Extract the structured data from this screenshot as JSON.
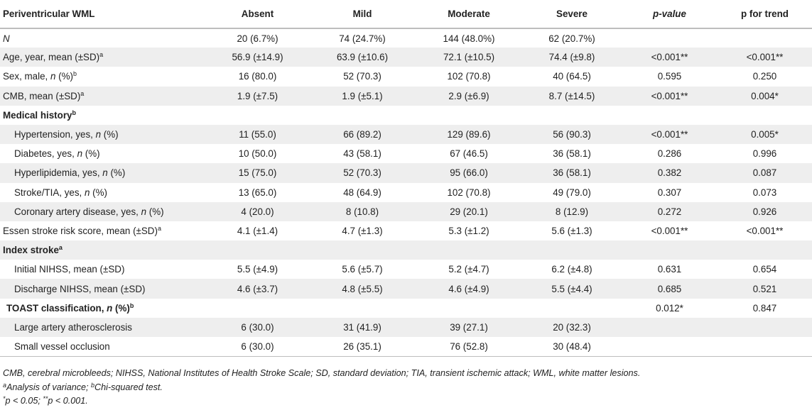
{
  "table": {
    "headers": [
      "Periventricular WML",
      "Absent",
      "Mild",
      "Moderate",
      "Severe",
      "p-value",
      "p for trend"
    ],
    "rows": [
      {
        "label_pre": "",
        "label_it": "N",
        "label_post": "",
        "sup": "",
        "type": "data",
        "shaded": false,
        "cells": [
          "20 (6.7%)",
          "74 (24.7%)",
          "144 (48.0%)",
          "62 (20.7%)",
          "",
          ""
        ]
      },
      {
        "label_pre": "Age, year, mean (±SD)",
        "label_it": "",
        "label_post": "",
        "sup": "a",
        "type": "data",
        "shaded": true,
        "cells": [
          "56.9 (±14.9)",
          "63.9 (±10.6)",
          "72.1 (±10.5)",
          "74.4 (±9.8)",
          "<0.001**",
          "<0.001**"
        ]
      },
      {
        "label_pre": "Sex, male, ",
        "label_it": "n",
        "label_post": " (%)",
        "sup": "b",
        "type": "data",
        "shaded": false,
        "cells": [
          "16 (80.0)",
          "52 (70.3)",
          "102 (70.8)",
          "40 (64.5)",
          "0.595",
          "0.250"
        ]
      },
      {
        "label_pre": "CMB, mean (±SD)",
        "label_it": "",
        "label_post": "",
        "sup": "a",
        "type": "data",
        "shaded": true,
        "cells": [
          "1.9 (±7.5)",
          "1.9 (±5.1)",
          "2.9 (±6.9)",
          "8.7 (±14.5)",
          "<0.001**",
          "0.004*"
        ]
      },
      {
        "label_pre": "Medical history",
        "label_it": "",
        "label_post": "",
        "sup": "b",
        "type": "section",
        "shaded": false,
        "cells": [
          "",
          "",
          "",
          "",
          "",
          ""
        ]
      },
      {
        "label_pre": "Hypertension, yes, ",
        "label_it": "n",
        "label_post": " (%)",
        "sup": "",
        "type": "indent",
        "shaded": true,
        "cells": [
          "11 (55.0)",
          "66 (89.2)",
          "129 (89.6)",
          "56 (90.3)",
          "<0.001**",
          "0.005*"
        ]
      },
      {
        "label_pre": "Diabetes, yes, ",
        "label_it": "n",
        "label_post": " (%)",
        "sup": "",
        "type": "indent",
        "shaded": false,
        "cells": [
          "10 (50.0)",
          "43 (58.1)",
          "67 (46.5)",
          "36 (58.1)",
          "0.286",
          "0.996"
        ]
      },
      {
        "label_pre": "Hyperlipidemia, yes, ",
        "label_it": "n",
        "label_post": " (%)",
        "sup": "",
        "type": "indent",
        "shaded": true,
        "cells": [
          "15 (75.0)",
          "52 (70.3)",
          "95 (66.0)",
          "36 (58.1)",
          "0.382",
          "0.087"
        ]
      },
      {
        "label_pre": "Stroke/TIA, yes, ",
        "label_it": "n",
        "label_post": " (%)",
        "sup": "",
        "type": "indent",
        "shaded": false,
        "cells": [
          "13 (65.0)",
          "48 (64.9)",
          "102 (70.8)",
          "49 (79.0)",
          "0.307",
          "0.073"
        ]
      },
      {
        "label_pre": "Coronary artery disease, yes, ",
        "label_it": "n",
        "label_post": " (%)",
        "sup": "",
        "type": "indent",
        "shaded": true,
        "cells": [
          "4 (20.0)",
          "8 (10.8)",
          "29 (20.1)",
          "8 (12.9)",
          "0.272",
          "0.926"
        ]
      },
      {
        "label_pre": "Essen stroke risk score, mean (±SD)",
        "label_it": "",
        "label_post": "",
        "sup": "a",
        "type": "data",
        "shaded": false,
        "cells": [
          "4.1 (±1.4)",
          "4.7 (±1.3)",
          "5.3 (±1.2)",
          "5.6 (±1.3)",
          "<0.001**",
          "<0.001**"
        ]
      },
      {
        "label_pre": "Index stroke",
        "label_it": "",
        "label_post": "",
        "sup": "a",
        "type": "section",
        "shaded": true,
        "cells": [
          "",
          "",
          "",
          "",
          "",
          ""
        ]
      },
      {
        "label_pre": "Initial NIHSS, mean (±SD)",
        "label_it": "",
        "label_post": "",
        "sup": "",
        "type": "indent",
        "shaded": false,
        "cells": [
          "5.5 (±4.9)",
          "5.6 (±5.7)",
          "5.2 (±4.7)",
          "6.2 (±4.8)",
          "0.631",
          "0.654"
        ]
      },
      {
        "label_pre": "Discharge NIHSS, mean (±SD)",
        "label_it": "",
        "label_post": "",
        "sup": "",
        "type": "indent",
        "shaded": true,
        "cells": [
          "4.6 (±3.7)",
          "4.8 (±5.5)",
          "4.6 (±4.9)",
          "5.5 (±4.4)",
          "0.685",
          "0.521"
        ]
      },
      {
        "label_pre": "TOAST classification, ",
        "label_it": "n",
        "label_post": " (%)",
        "sup": "b",
        "type": "section-indent",
        "shaded": false,
        "cells": [
          "",
          "",
          "",
          "",
          "0.012*",
          "0.847"
        ]
      },
      {
        "label_pre": "Large artery atherosclerosis",
        "label_it": "",
        "label_post": "",
        "sup": "",
        "type": "indent",
        "shaded": true,
        "cells": [
          "6 (30.0)",
          "31 (41.9)",
          "39 (27.1)",
          "20 (32.3)",
          "",
          ""
        ]
      },
      {
        "label_pre": "Small vessel occlusion",
        "label_it": "",
        "label_post": "",
        "sup": "",
        "type": "indent",
        "shaded": false,
        "cells": [
          "6 (30.0)",
          "26 (35.1)",
          "76 (52.8)",
          "30 (48.4)",
          "",
          ""
        ]
      }
    ]
  },
  "notes": {
    "abbreviations": "CMB, cerebral microbleeds; NIHSS, National Institutes of Health Stroke Scale; SD, standard deviation; TIA, transient ischemic attack; WML, white matter lesions.",
    "sup_a": "a",
    "test_a": "Analysis of variance; ",
    "sup_b": "b",
    "test_b": "Chi-squared test.",
    "sig_star": "*",
    "sig_text_1": "p < 0.05; ",
    "sig_star2": "**",
    "sig_text_2": "p < 0.001."
  }
}
